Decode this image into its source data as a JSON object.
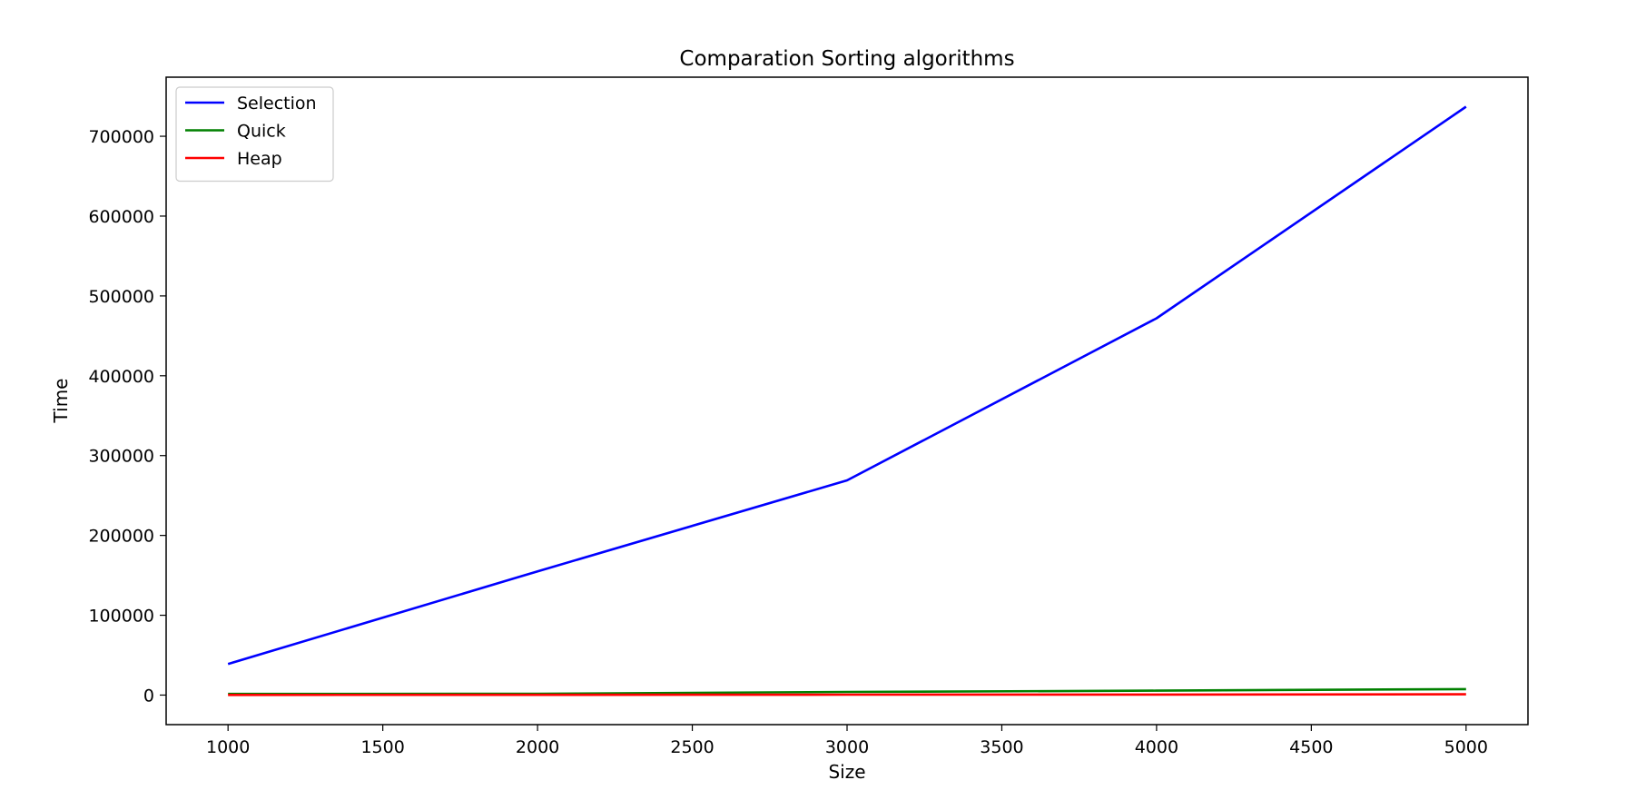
{
  "chart_data": {
    "type": "line",
    "title": "Comparation Sorting algorithms",
    "xlabel": "Size",
    "ylabel": "Time",
    "x": [
      1000,
      2000,
      3000,
      4000,
      5000
    ],
    "xlim": [
      800,
      5200
    ],
    "ylim": [
      -37000,
      774000
    ],
    "xticks": [
      1000,
      1500,
      2000,
      2500,
      3000,
      3500,
      4000,
      4500,
      5000
    ],
    "yticks": [
      0,
      100000,
      200000,
      300000,
      400000,
      500000,
      600000,
      700000
    ],
    "grid": false,
    "legend_position": "upper-left",
    "series": [
      {
        "name": "Selection",
        "color": "#0000ff",
        "values": [
          39000,
          155000,
          269000,
          472000,
          737000
        ]
      },
      {
        "name": "Quick",
        "color": "#008000",
        "values": [
          1500,
          1700,
          4000,
          5500,
          7500
        ]
      },
      {
        "name": "Heap",
        "color": "#ff0000",
        "values": [
          200,
          300,
          500,
          700,
          1000
        ]
      }
    ]
  }
}
